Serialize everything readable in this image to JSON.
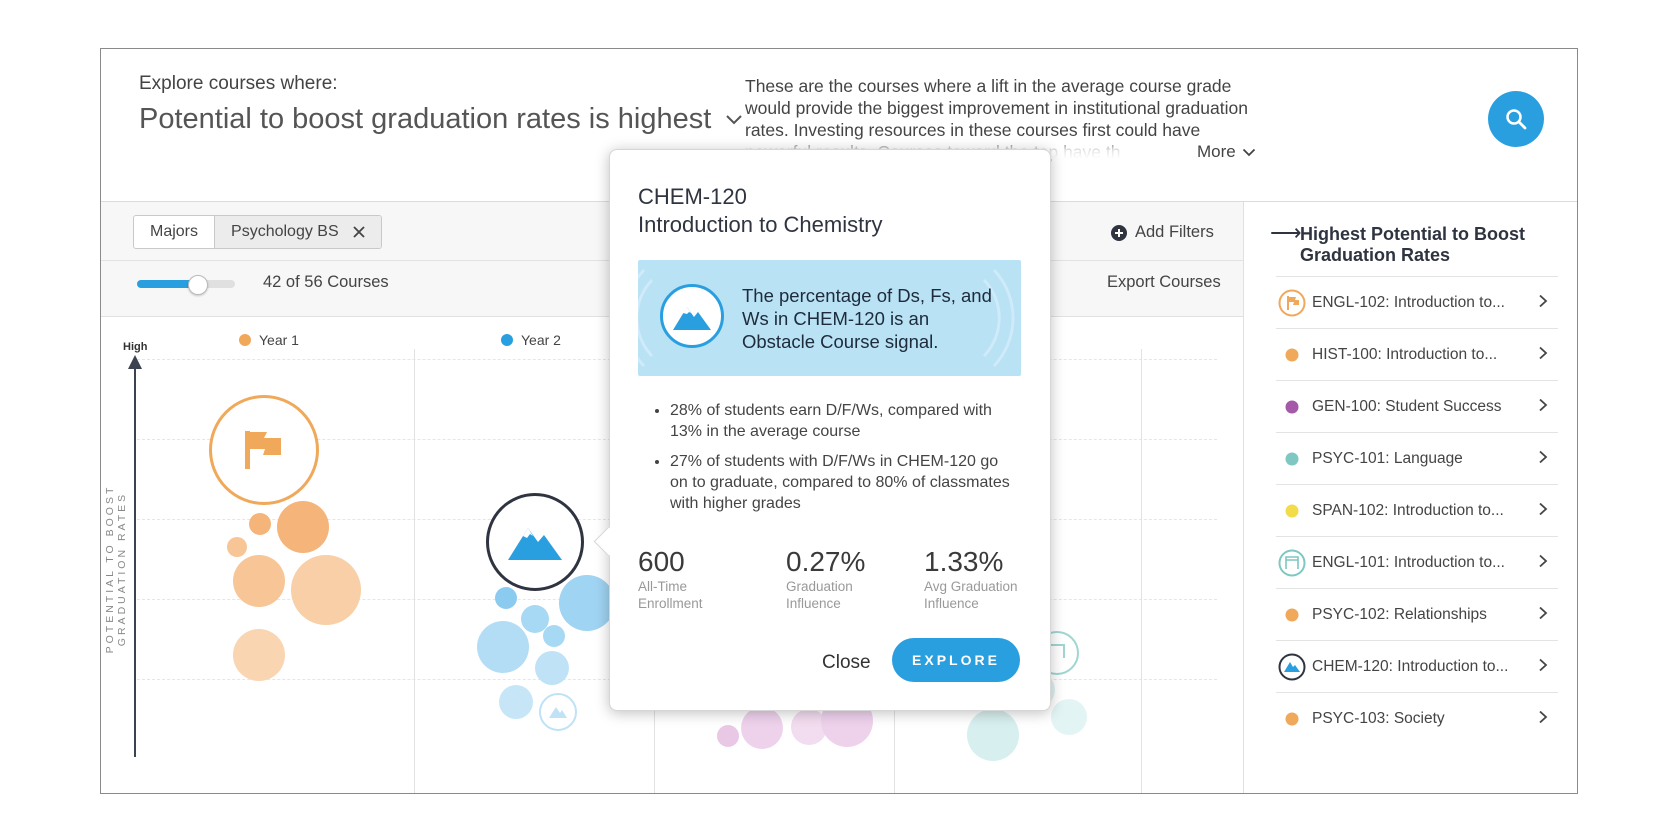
{
  "header": {
    "explore_label": "Explore courses where:",
    "headline": "Potential to boost graduation rates is highest",
    "description": "These are the courses where a lift in the average course grade would provide the biggest improvement in institutional graduation rates. Investing resources in these courses first could have powerful results. Courses toward the top have th",
    "more_label": "More"
  },
  "filters": {
    "chip_majors": "Majors",
    "chip_selected": "Psychology BS",
    "add_filters": "Add Filters",
    "course_count": "42 of 56 Courses",
    "slider_value": 0.6,
    "export": "Export Courses"
  },
  "chart": {
    "axis_high": "High",
    "axis_label": "POTENTIAL TO BOOST GRADUATION RATES",
    "years": [
      {
        "label": "Year 1",
        "color": "#f0a85a"
      },
      {
        "label": "Year 2",
        "color": "#2a9fe0"
      }
    ]
  },
  "popup": {
    "code": "CHEM-120",
    "name": "Introduction to Chemistry",
    "signal_text": "The percentage of Ds, Fs, and Ws in CHEM-120 is an Obstacle Course signal.",
    "bullets": [
      "28% of students earn D/F/Ws, compared with 13% in the average course",
      "27% of students with D/F/Ws in CHEM-120 go on to graduate, compared to 80% of classmates with higher grades"
    ],
    "stats": [
      {
        "value": "600",
        "label1": "All-Time",
        "label2": "Enrollment"
      },
      {
        "value": "0.27%",
        "label1": "Graduation",
        "label2": "Influence"
      },
      {
        "value": "1.33%",
        "label1": "Avg Graduation",
        "label2": "Influence"
      }
    ],
    "close": "Close",
    "explore": "EXPLORE"
  },
  "right_panel": {
    "title": "Highest Potential to Boost Graduation Rates",
    "items": [
      {
        "label": "ENGL-102: Introduction to...",
        "icon": "flag-icon",
        "color": "#f0a85a"
      },
      {
        "label": "HIST-100: Introduction to...",
        "icon": "dot",
        "color": "#f0a85a"
      },
      {
        "label": "GEN-100: Student Success",
        "icon": "dot",
        "color": "#a45aa8"
      },
      {
        "label": "PSYC-101: Language",
        "icon": "dot",
        "color": "#7fc7c2"
      },
      {
        "label": "SPAN-102: Introduction to...",
        "icon": "dot",
        "color": "#f3dc4a"
      },
      {
        "label": "ENGL-101: Introduction to...",
        "icon": "gate-icon",
        "color": "#7fc7c2"
      },
      {
        "label": "PSYC-102: Relationships",
        "icon": "dot",
        "color": "#f0a85a"
      },
      {
        "label": "CHEM-120: Introduction to...",
        "icon": "mountain-icon",
        "color": "#2a9fe0"
      },
      {
        "label": "PSYC-103: Society",
        "icon": "dot",
        "color": "#f0a85a"
      }
    ]
  }
}
